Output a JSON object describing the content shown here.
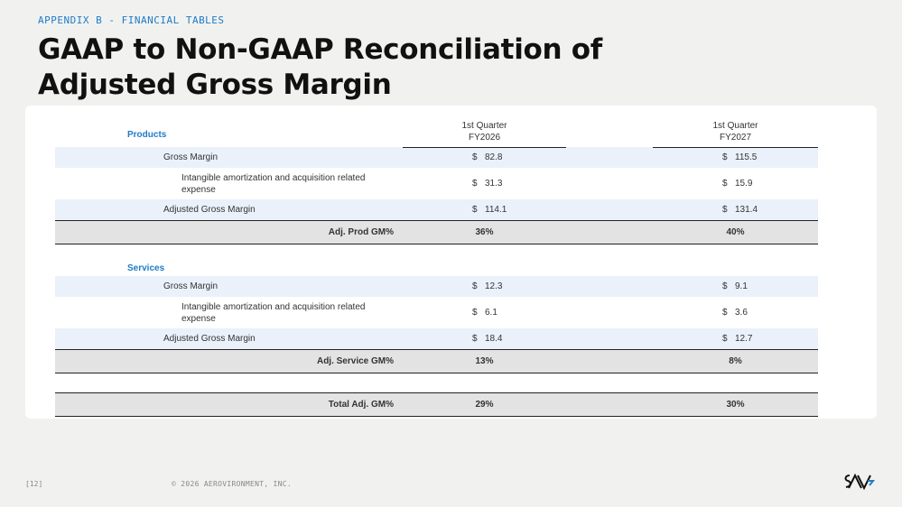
{
  "eyebrow": "APPENDIX B - FINANCIAL TABLES",
  "title": "GAAP to Non-GAAP Reconciliation of Adjusted Gross Margin",
  "columns": {
    "q1": {
      "line1": "1st Quarter",
      "line2": "FY2026"
    },
    "q2": {
      "line1": "1st Quarter",
      "line2": "FY2027"
    }
  },
  "currency": "$",
  "products": {
    "label": "Products",
    "rows": [
      {
        "label": "Gross Margin",
        "q1": "82.8",
        "q2": "115.5"
      },
      {
        "label": "Intangible amortization and acquisition related expense",
        "q1": "31.3",
        "q2": "15.9"
      },
      {
        "label": "Adjusted Gross Margin",
        "q1": "114.1",
        "q2": "131.4"
      }
    ],
    "summary": {
      "label": "Adj. Prod GM%",
      "q1": "36%",
      "q2": "40%"
    }
  },
  "services": {
    "label": "Services",
    "rows": [
      {
        "label": "Gross Margin",
        "q1": "12.3",
        "q2": "9.1"
      },
      {
        "label": "Intangible amortization and acquisition related expense",
        "q1": "6.1",
        "q2": "3.6"
      },
      {
        "label": "Adjusted Gross Margin",
        "q1": "18.4",
        "q2": "12.7"
      }
    ],
    "summary": {
      "label": "Adj. Service GM%",
      "q1": "13%",
      "q2": "8%"
    }
  },
  "total": {
    "label": "Total Adj. GM%",
    "q1": "29%",
    "q2": "30%"
  },
  "footer": {
    "page": "[12]",
    "copyright": "© 2026 AEROVIRONMENT, INC."
  },
  "logo_text": "AV"
}
